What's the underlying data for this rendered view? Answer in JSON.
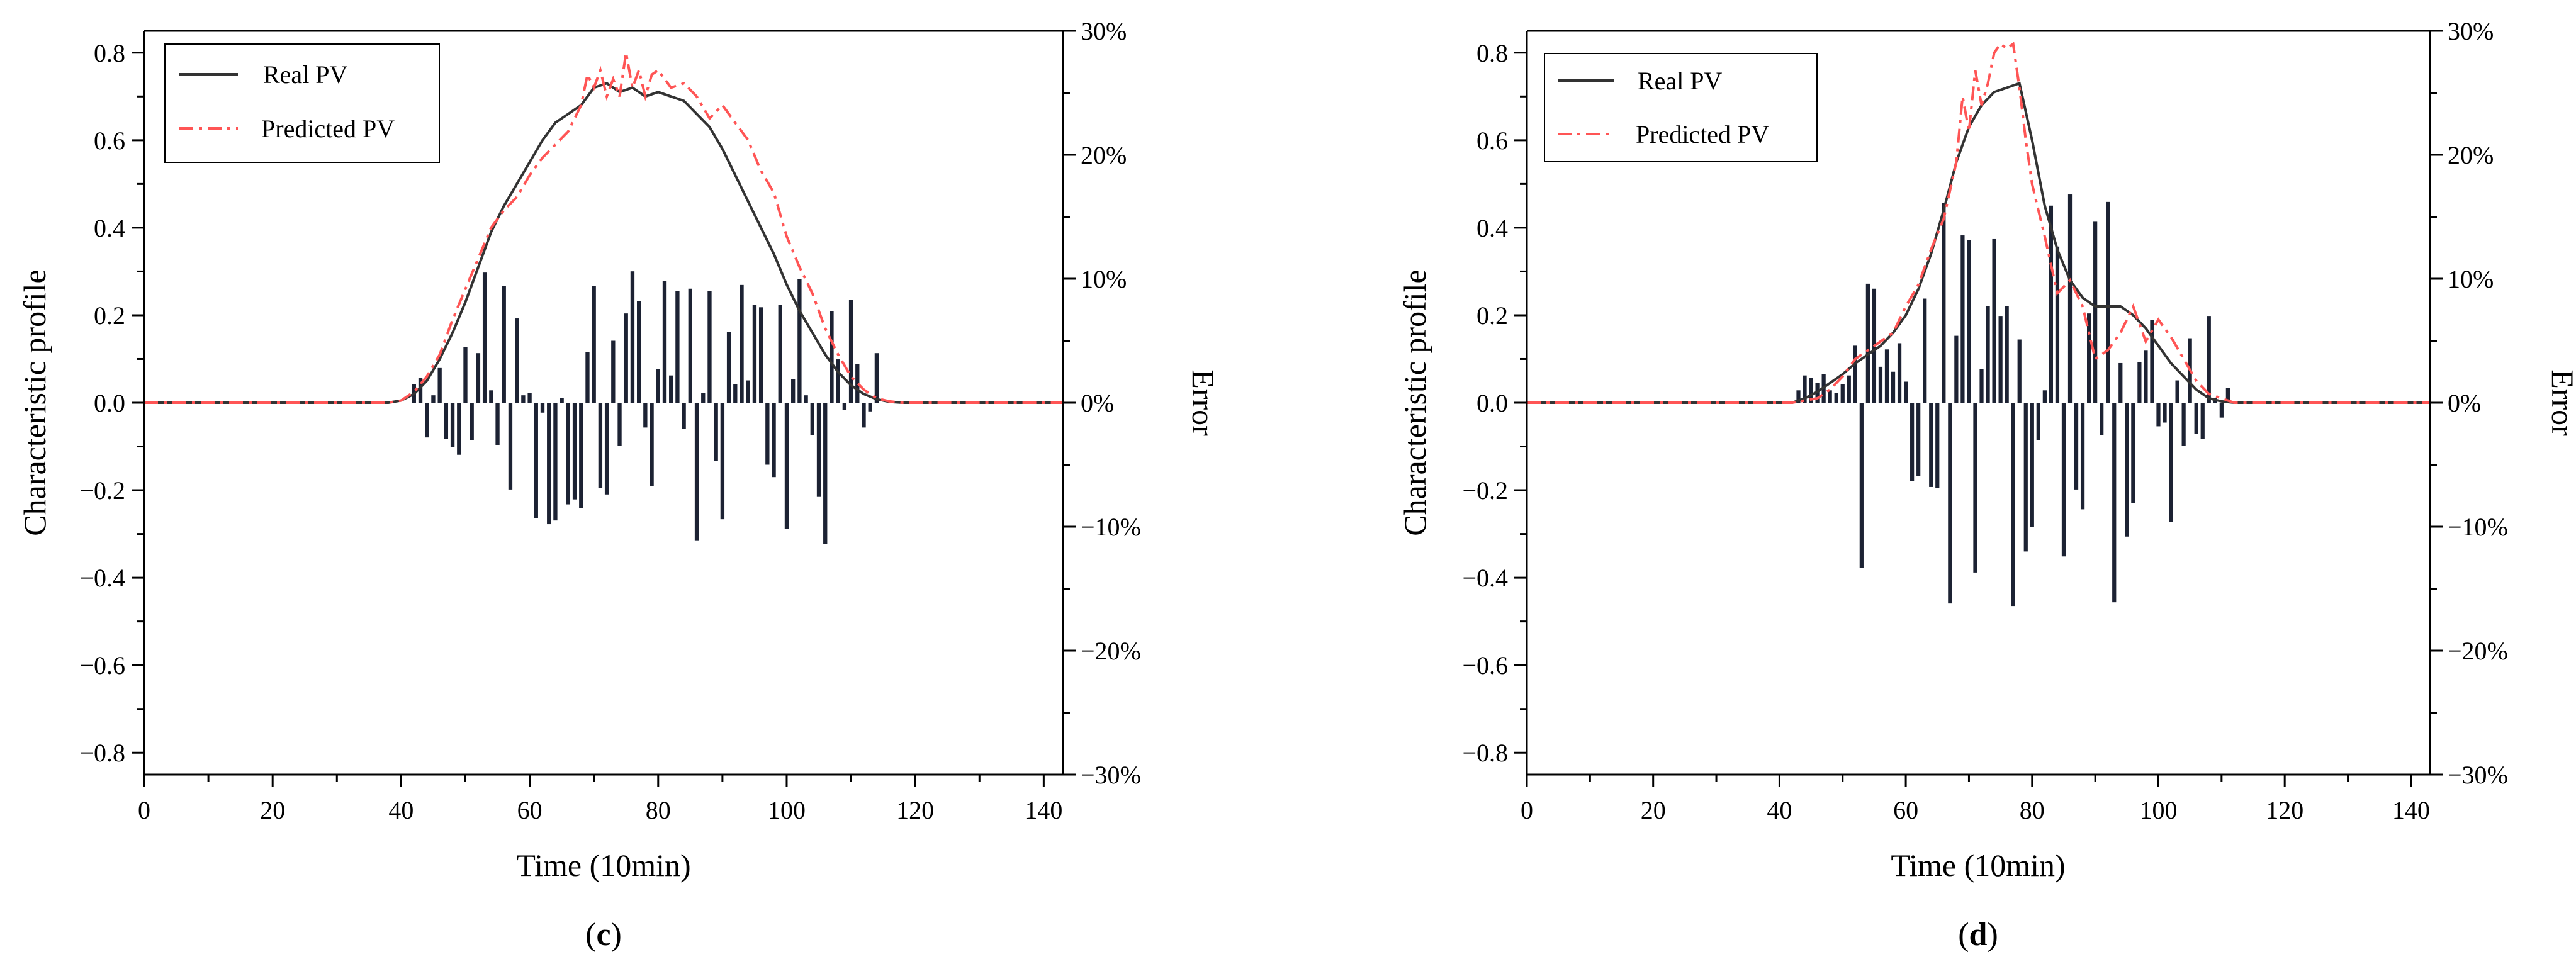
{
  "colors": {
    "real_pv": "#333333",
    "predicted_pv": "#ff5555",
    "error_bar": "#1c2233",
    "axis": "#000000"
  },
  "chart_data": [
    {
      "type": "line",
      "panel_label": {
        "open": "(",
        "letter": "c",
        "close": ")"
      },
      "xlabel": "Time (10min)",
      "ylabel": "Characteristic profile",
      "y2label": "Error",
      "xlim": [
        0,
        143
      ],
      "ylim": [
        -0.85,
        0.85
      ],
      "y2lim": [
        -30,
        30
      ],
      "xticks": [
        0,
        20,
        40,
        60,
        80,
        100,
        120,
        140
      ],
      "xtick_labels": [
        "0",
        "20",
        "40",
        "60",
        "80",
        "100",
        "120",
        "140"
      ],
      "yticks": [
        -0.8,
        -0.6,
        -0.4,
        -0.2,
        0.0,
        0.2,
        0.4,
        0.6,
        0.8
      ],
      "ytick_labels": [
        "−0.8",
        "−0.6",
        "−0.4",
        "−0.2",
        "0.0",
        "0.2",
        "0.4",
        "0.6",
        "0.8"
      ],
      "y2ticks": [
        -30,
        -20,
        -10,
        0,
        10,
        20,
        30
      ],
      "y2tick_labels": [
        "−30%",
        "−20%",
        "−10%",
        "0%",
        "10%",
        "20%",
        "30%"
      ],
      "legend": {
        "position": "top-left",
        "entries": [
          "Real PV",
          "Predicted PV"
        ]
      },
      "series": [
        {
          "name": "Real PV",
          "style": "solid",
          "x": [
            0,
            38,
            40,
            42,
            44,
            46,
            48,
            50,
            52,
            54,
            56,
            58,
            60,
            62,
            64,
            66,
            68,
            70,
            72,
            74,
            76,
            78,
            80,
            82,
            84,
            86,
            88,
            90,
            92,
            94,
            96,
            98,
            100,
            102,
            104,
            106,
            108,
            110,
            112,
            114,
            116,
            118,
            143
          ],
          "y": [
            0,
            0,
            0.005,
            0.02,
            0.05,
            0.1,
            0.16,
            0.23,
            0.31,
            0.39,
            0.45,
            0.5,
            0.55,
            0.6,
            0.64,
            0.66,
            0.68,
            0.72,
            0.73,
            0.71,
            0.72,
            0.7,
            0.71,
            0.7,
            0.69,
            0.66,
            0.63,
            0.58,
            0.52,
            0.46,
            0.4,
            0.34,
            0.27,
            0.21,
            0.16,
            0.11,
            0.07,
            0.04,
            0.02,
            0.008,
            0.002,
            0,
            0
          ]
        },
        {
          "name": "Predicted PV",
          "style": "dashdot",
          "x": [
            0,
            38,
            40,
            42,
            44,
            46,
            48,
            50,
            52,
            54,
            56,
            58,
            60,
            62,
            64,
            66,
            68,
            69,
            70,
            71,
            72,
            73,
            74,
            75,
            76,
            77,
            78,
            79,
            80,
            82,
            84,
            86,
            88,
            90,
            92,
            94,
            96,
            98,
            100,
            102,
            104,
            106,
            108,
            110,
            112,
            114,
            116,
            118,
            143
          ],
          "y": [
            0,
            0,
            0.005,
            0.025,
            0.06,
            0.11,
            0.19,
            0.26,
            0.33,
            0.4,
            0.44,
            0.47,
            0.52,
            0.56,
            0.59,
            0.62,
            0.68,
            0.75,
            0.72,
            0.76,
            0.7,
            0.74,
            0.7,
            0.8,
            0.72,
            0.76,
            0.7,
            0.75,
            0.76,
            0.72,
            0.73,
            0.7,
            0.65,
            0.68,
            0.64,
            0.6,
            0.53,
            0.48,
            0.38,
            0.31,
            0.25,
            0.17,
            0.11,
            0.06,
            0.03,
            0.01,
            0.003,
            0,
            0
          ]
        }
      ],
      "error_bars": {
        "x": [
          42,
          43,
          44,
          45,
          46,
          47,
          48,
          49,
          50,
          51,
          52,
          53,
          54,
          55,
          56,
          57,
          58,
          59,
          60,
          61,
          62,
          63,
          64,
          65,
          66,
          67,
          68,
          69,
          70,
          71,
          72,
          73,
          74,
          75,
          76,
          77,
          78,
          79,
          80,
          81,
          82,
          83,
          84,
          85,
          86,
          87,
          88,
          89,
          90,
          91,
          92,
          93,
          94,
          95,
          96,
          97,
          98,
          99,
          100,
          101,
          102,
          103,
          104,
          105,
          106,
          107,
          108,
          109,
          110,
          111,
          112,
          113,
          114
        ],
        "values": [
          1.5,
          2.0,
          -2.8,
          0.6,
          2.8,
          -2.9,
          -3.6,
          -4.2,
          4.5,
          -3.0,
          4.0,
          10.5,
          1.0,
          -3.4,
          9.4,
          -7.0,
          6.8,
          0.6,
          0.8,
          -9.3,
          -0.8,
          -9.8,
          -9.5,
          0.4,
          -8.2,
          -7.8,
          -8.5,
          4.1,
          9.4,
          -6.9,
          -7.4,
          5.0,
          -3.5,
          7.2,
          10.6,
          8.2,
          -2.0,
          -6.7,
          2.7,
          9.8,
          2.2,
          9.0,
          -2.1,
          9.2,
          -11.1,
          0.8,
          9.0,
          -4.7,
          -9.4,
          5.7,
          1.5,
          9.5,
          1.8,
          7.9,
          7.7,
          -5.0,
          -6.0,
          7.9,
          -10.2,
          1.9,
          10.0,
          0.6,
          -2.6,
          -7.6,
          -11.4,
          7.4,
          3.5,
          -0.6,
          8.3,
          3.1,
          -2.0,
          -0.7,
          4.0
        ]
      }
    },
    {
      "type": "line",
      "panel_label": {
        "open": "(",
        "letter": "d",
        "close": ")"
      },
      "xlabel": "Time (10min)",
      "ylabel": "Characteristic profile",
      "y2label": "Error",
      "xlim": [
        0,
        143
      ],
      "ylim": [
        -0.85,
        0.85
      ],
      "y2lim": [
        -30,
        30
      ],
      "xticks": [
        0,
        20,
        40,
        60,
        80,
        100,
        120,
        140
      ],
      "xtick_labels": [
        "0",
        "20",
        "40",
        "60",
        "80",
        "100",
        "120",
        "140"
      ],
      "yticks": [
        -0.8,
        -0.6,
        -0.4,
        -0.2,
        0.0,
        0.2,
        0.4,
        0.6,
        0.8
      ],
      "ytick_labels": [
        "−0.8",
        "−0.6",
        "−0.4",
        "−0.2",
        "0.0",
        "0.2",
        "0.4",
        "0.6",
        "0.8"
      ],
      "y2ticks": [
        -30,
        -20,
        -10,
        0,
        10,
        20,
        30
      ],
      "y2tick_labels": [
        "−30%",
        "−20%",
        "−10%",
        "0%",
        "10%",
        "20%",
        "30%"
      ],
      "legend": {
        "position": "top-left",
        "entries": [
          "Real PV",
          "Predicted PV"
        ]
      },
      "series": [
        {
          "name": "Real PV",
          "style": "solid",
          "x": [
            0,
            42,
            44,
            46,
            48,
            50,
            52,
            54,
            56,
            58,
            60,
            62,
            64,
            66,
            68,
            70,
            72,
            74,
            76,
            78,
            80,
            82,
            84,
            86,
            88,
            90,
            92,
            94,
            96,
            98,
            100,
            102,
            104,
            106,
            108,
            110,
            112,
            143
          ],
          "y": [
            0,
            0,
            0.01,
            0.025,
            0.045,
            0.065,
            0.09,
            0.11,
            0.13,
            0.16,
            0.2,
            0.26,
            0.34,
            0.44,
            0.55,
            0.63,
            0.68,
            0.71,
            0.72,
            0.73,
            0.6,
            0.45,
            0.35,
            0.28,
            0.24,
            0.22,
            0.22,
            0.22,
            0.2,
            0.17,
            0.13,
            0.09,
            0.06,
            0.03,
            0.01,
            0.003,
            0,
            0
          ]
        },
        {
          "name": "Predicted PV",
          "style": "dashdot",
          "x": [
            0,
            42,
            44,
            46,
            48,
            50,
            52,
            54,
            56,
            58,
            60,
            62,
            64,
            66,
            68,
            69,
            70,
            71,
            72,
            73,
            74,
            75,
            76,
            77,
            78,
            79,
            80,
            81,
            82,
            84,
            86,
            88,
            90,
            92,
            94,
            96,
            98,
            100,
            102,
            104,
            106,
            108,
            110,
            112,
            143
          ],
          "y": [
            0,
            0,
            0.005,
            0.01,
            0.03,
            0.06,
            0.1,
            0.12,
            0.14,
            0.16,
            0.22,
            0.27,
            0.35,
            0.42,
            0.55,
            0.7,
            0.62,
            0.76,
            0.68,
            0.73,
            0.8,
            0.82,
            0.81,
            0.82,
            0.72,
            0.6,
            0.5,
            0.44,
            0.38,
            0.25,
            0.28,
            0.22,
            0.1,
            0.12,
            0.16,
            0.22,
            0.14,
            0.19,
            0.15,
            0.1,
            0.05,
            0.02,
            0.01,
            0,
            0
          ]
        }
      ],
      "error_bars": {
        "x": [
          43,
          44,
          45,
          46,
          47,
          48,
          49,
          50,
          51,
          52,
          53,
          54,
          55,
          56,
          57,
          58,
          59,
          60,
          61,
          62,
          63,
          64,
          65,
          66,
          67,
          68,
          69,
          70,
          71,
          72,
          73,
          74,
          75,
          76,
          77,
          78,
          79,
          80,
          81,
          82,
          83,
          84,
          85,
          86,
          87,
          88,
          89,
          90,
          91,
          92,
          93,
          94,
          95,
          96,
          97,
          98,
          99,
          100,
          101,
          102,
          103,
          104,
          105,
          106,
          107,
          108,
          109,
          110,
          111
        ],
        "values": [
          1.0,
          2.2,
          2.0,
          1.6,
          2.3,
          1.0,
          0.8,
          1.5,
          2.2,
          4.6,
          -13.3,
          9.6,
          9.2,
          2.9,
          4.3,
          2.5,
          4.8,
          1.7,
          -6.3,
          -5.9,
          8.4,
          -6.8,
          -6.9,
          16.1,
          -16.2,
          5.4,
          13.5,
          13.1,
          -13.7,
          2.7,
          7.8,
          13.2,
          7.0,
          7.8,
          -16.4,
          5.1,
          -12.0,
          -10.0,
          -3.0,
          1.0,
          15.9,
          12.6,
          -12.4,
          16.8,
          -7.0,
          -8.6,
          7.2,
          14.6,
          -2.6,
          16.2,
          -16.1,
          3.2,
          -10.8,
          -8.1,
          3.3,
          4.2,
          6.7,
          -1.9,
          -1.6,
          -9.6,
          1.8,
          -3.5,
          5.2,
          -2.5,
          -2.9,
          7.0,
          0.4,
          -1.2,
          1.2
        ]
      }
    }
  ]
}
